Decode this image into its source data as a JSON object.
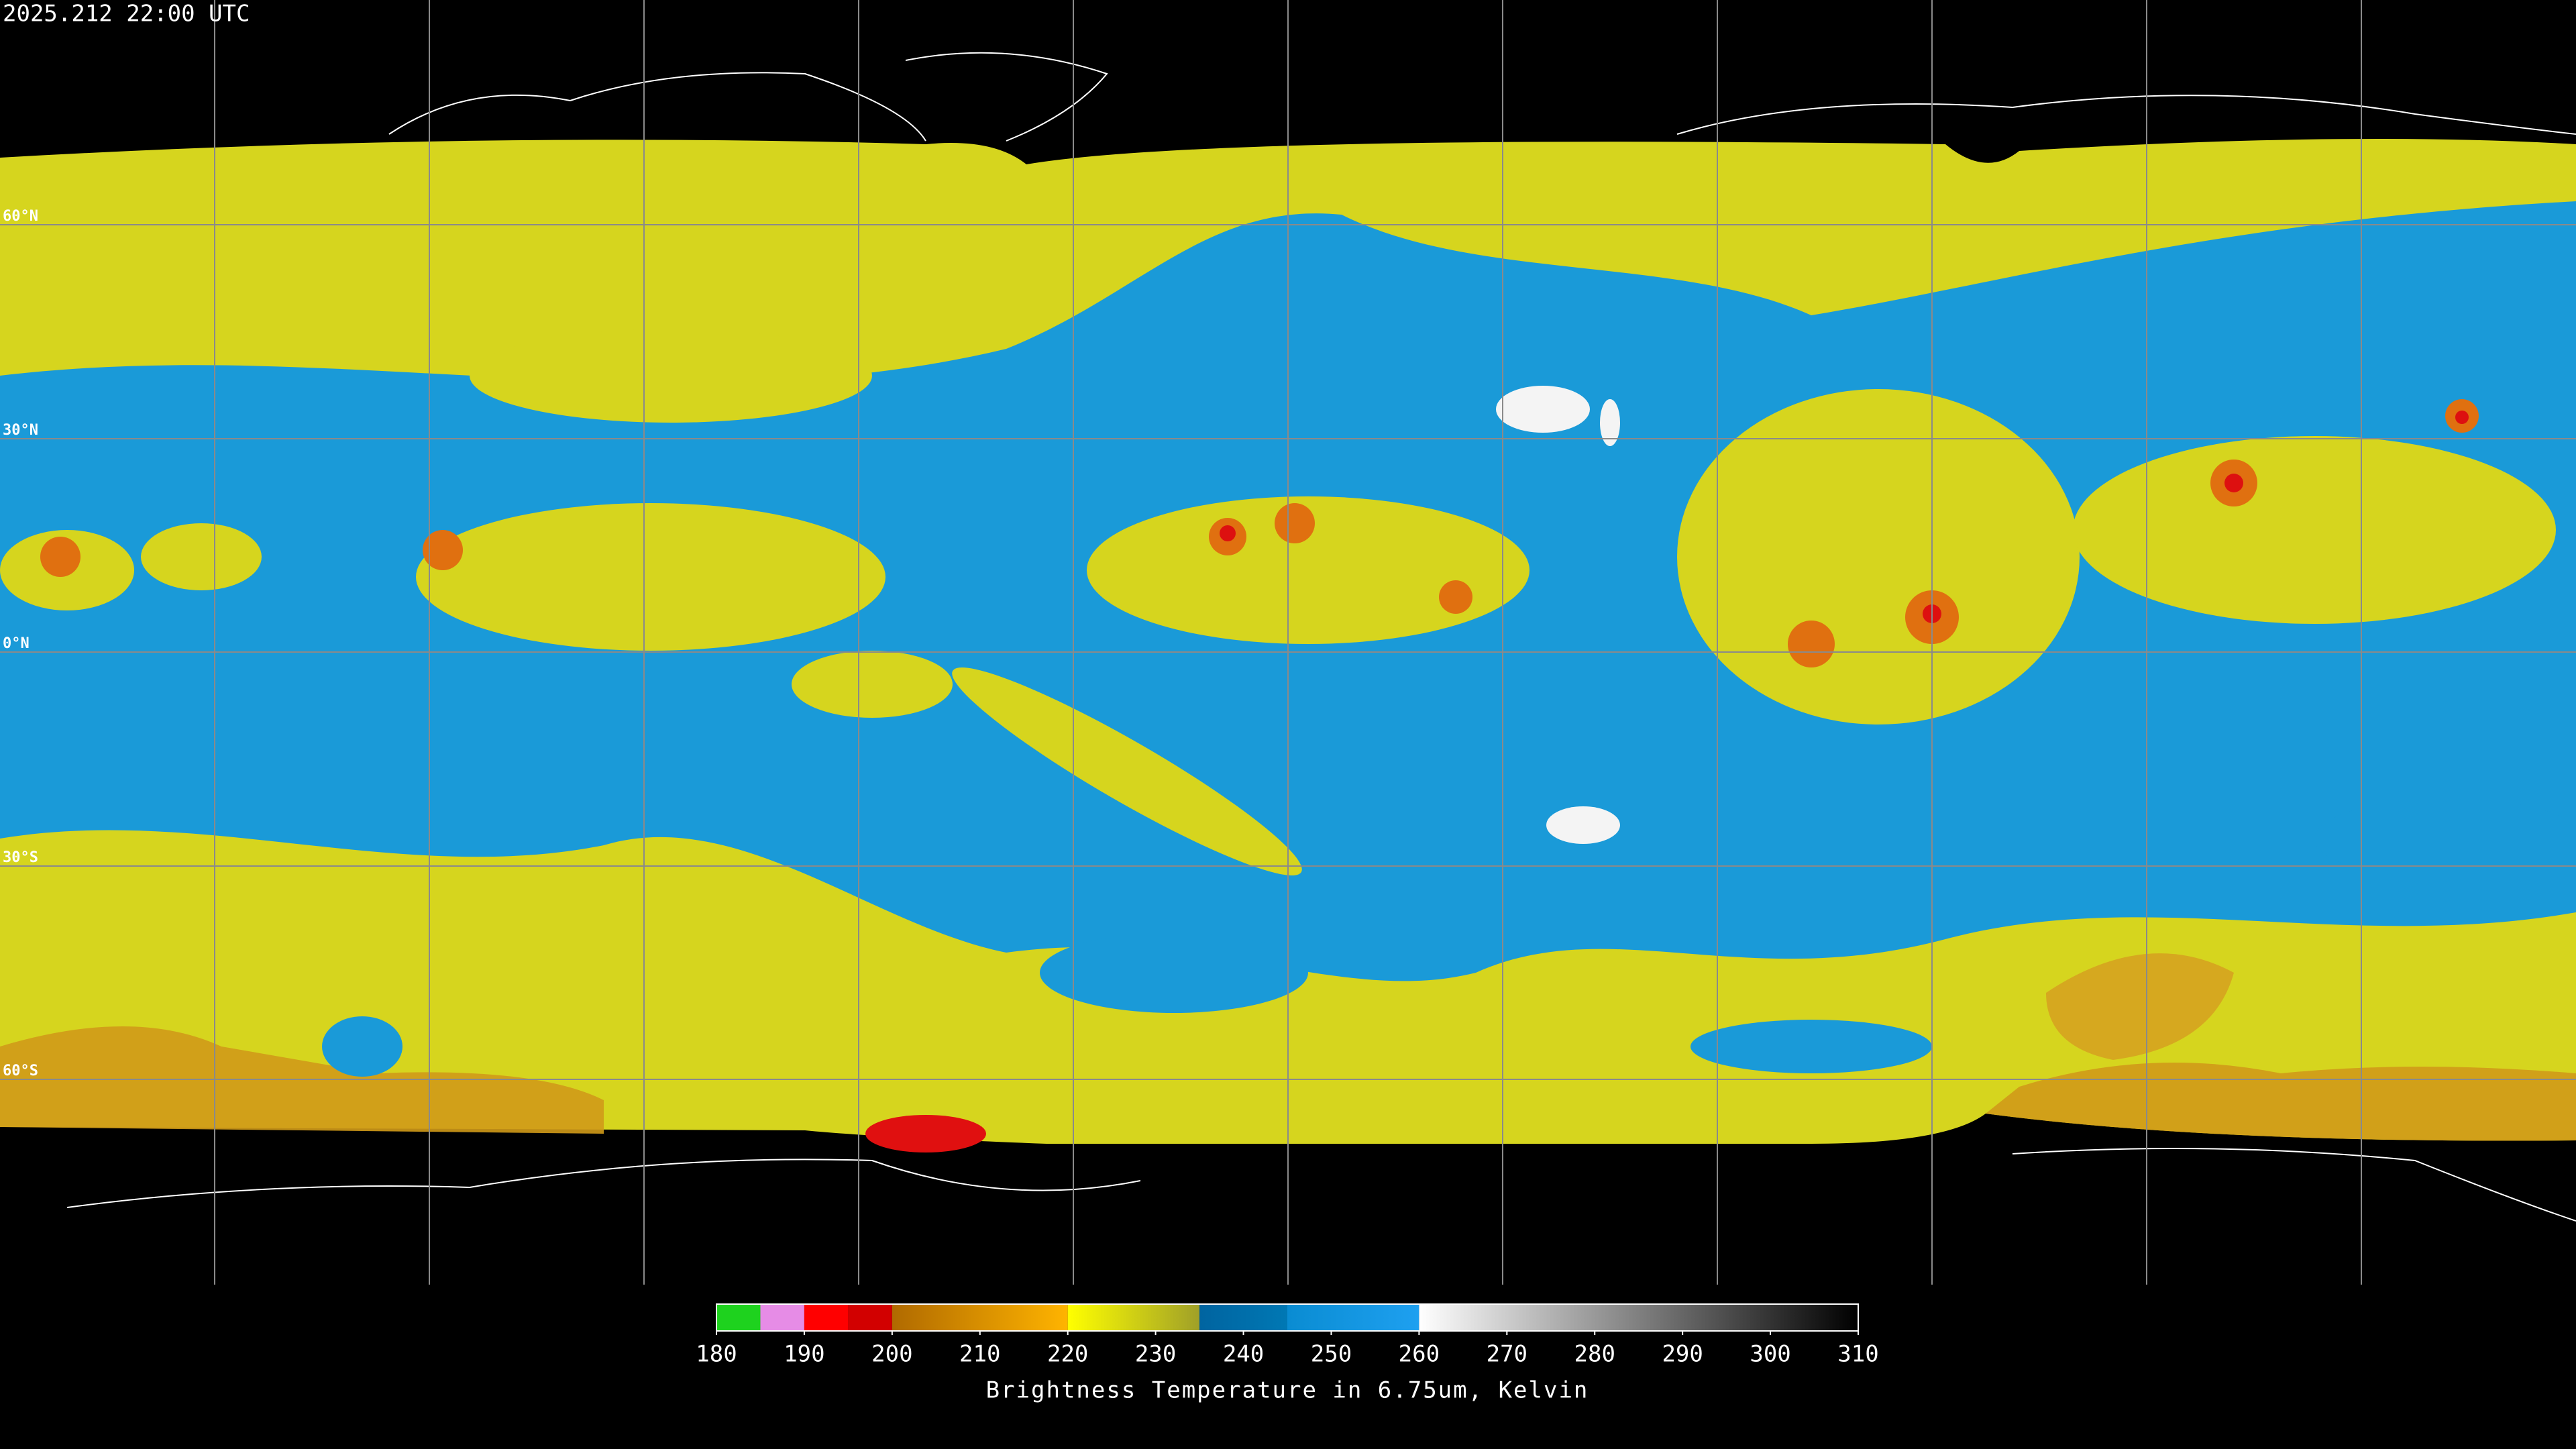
{
  "header": {
    "timestamp": "2025.212 22:00 UTC"
  },
  "map": {
    "lat_labels": [
      "60°N",
      "30°N",
      "0°N",
      "30°S",
      "60°S"
    ]
  },
  "colorbar": {
    "label": "Brightness Temperature in 6.75um, Kelvin",
    "range": [
      180,
      310
    ],
    "ticks": [
      180,
      190,
      200,
      210,
      220,
      230,
      240,
      250,
      260,
      270,
      280,
      290,
      300,
      310
    ],
    "segments": [
      {
        "from": 180,
        "to": 185,
        "colors": [
          "#1ed21e",
          "#1ed21e"
        ]
      },
      {
        "from": 185,
        "to": 190,
        "colors": [
          "#e68ce6",
          "#e68ce6"
        ]
      },
      {
        "from": 190,
        "to": 195,
        "colors": [
          "#ff0000",
          "#ff0000"
        ]
      },
      {
        "from": 195,
        "to": 200,
        "colors": [
          "#d20000",
          "#d20000"
        ]
      },
      {
        "from": 200,
        "to": 220,
        "colors": [
          "#b06a00",
          "#ffb400"
        ]
      },
      {
        "from": 220,
        "to": 235,
        "colors": [
          "#ffff00",
          "#a0a028"
        ]
      },
      {
        "from": 235,
        "to": 245,
        "colors": [
          "#0064a0",
          "#0078b4"
        ]
      },
      {
        "from": 245,
        "to": 260,
        "colors": [
          "#0a8cd2",
          "#1ea0f0"
        ]
      },
      {
        "from": 260,
        "to": 310,
        "colors": [
          "#ffffff",
          "#000000"
        ]
      }
    ]
  }
}
